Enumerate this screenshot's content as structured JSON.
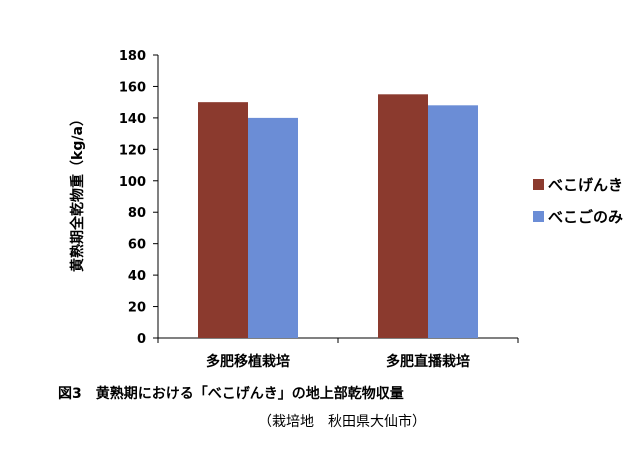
{
  "chart_data": {
    "type": "bar",
    "categories": [
      "多肥移植栽培",
      "多肥直播栽培"
    ],
    "series": [
      {
        "name": "べこげんき",
        "values": [
          150,
          155
        ],
        "color": "#8B3A2E"
      },
      {
        "name": "べこごのみ",
        "values": [
          140,
          148
        ],
        "color": "#6B8DD6"
      }
    ],
    "ylabel": "黄熟期全乾物重（kg/a）",
    "xlabel": "",
    "ylim": [
      0,
      180
    ],
    "yticks": [
      0,
      20,
      40,
      60,
      80,
      100,
      120,
      140,
      160,
      180
    ],
    "grid": false,
    "legend_position": "right"
  },
  "caption": {
    "figure_number": "図3",
    "title": "黄熟期における「べこげんき」の地上部乾物収量",
    "note": "（栽培地　秋田県大仙市）"
  }
}
